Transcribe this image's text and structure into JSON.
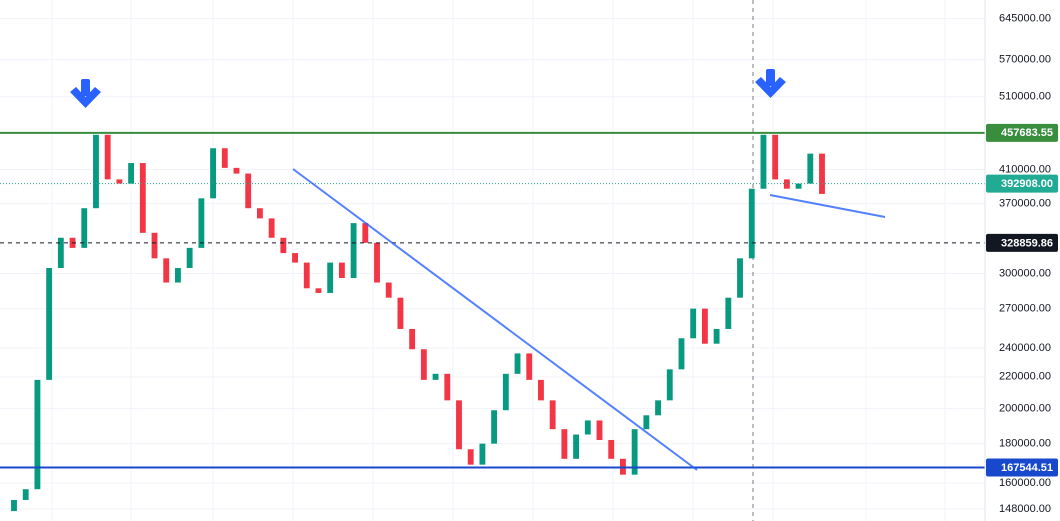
{
  "chart_data": {
    "type": "candlestick",
    "log_scale": true,
    "up_color": "#089981",
    "down_color": "#f23645",
    "open": [
      147000,
      152000,
      157000,
      218000,
      305000,
      334000,
      324000,
      365000,
      455000,
      398000,
      393000,
      418000,
      339000,
      314000,
      292000,
      305000,
      324000,
      376000,
      437000,
      412000,
      405000,
      365000,
      354000,
      334000,
      319000,
      310000,
      287000,
      283000,
      310000,
      296000,
      349000,
      329000,
      292000,
      279000,
      254000,
      239000,
      218000,
      222000,
      205000,
      177000,
      169000,
      180000,
      199000,
      222000,
      236000,
      218000,
      205000,
      188000,
      172000,
      185000,
      193000,
      182000,
      172000,
      164000,
      188000,
      196000,
      205000,
      225000,
      247000,
      270000,
      243000,
      254000,
      279000,
      314000,
      387000,
      455000,
      398000,
      387000,
      393000,
      430000
    ],
    "close": [
      152000,
      157000,
      218000,
      305000,
      334000,
      324000,
      365000,
      455000,
      398000,
      393000,
      418000,
      339000,
      314000,
      292000,
      305000,
      324000,
      376000,
      437000,
      412000,
      405000,
      365000,
      354000,
      334000,
      319000,
      310000,
      287000,
      283000,
      310000,
      296000,
      349000,
      329000,
      292000,
      279000,
      254000,
      239000,
      218000,
      222000,
      205000,
      177000,
      169000,
      180000,
      199000,
      222000,
      236000,
      218000,
      205000,
      188000,
      172000,
      185000,
      193000,
      182000,
      172000,
      164000,
      188000,
      196000,
      205000,
      225000,
      247000,
      270000,
      243000,
      254000,
      279000,
      314000,
      387000,
      455000,
      398000,
      387000,
      393000,
      430000,
      381000
    ],
    "ylim": [
      142700,
      682000
    ],
    "yticks": [
      {
        "value": 645000,
        "label": "645000.00"
      },
      {
        "value": 570000,
        "label": "570000.00"
      },
      {
        "value": 510000,
        "label": "510000.00"
      },
      {
        "value": 410000,
        "label": "410000.00"
      },
      {
        "value": 370000,
        "label": "370000.00"
      },
      {
        "value": 300000,
        "label": "300000.00"
      },
      {
        "value": 270000,
        "label": "270000.00"
      },
      {
        "value": 240000,
        "label": "240000.00"
      },
      {
        "value": 220000,
        "label": "220000.00"
      },
      {
        "value": 200000,
        "label": "200000.00"
      },
      {
        "value": 180000,
        "label": "180000.00"
      },
      {
        "value": 160000,
        "label": "160000.00"
      },
      {
        "value": 148000,
        "label": "148000.00"
      }
    ],
    "levels": [
      {
        "value": 457683.55,
        "label": "457683.55",
        "color": "#388e3c",
        "style": "solid"
      },
      {
        "value": 392908,
        "label": "392908.00",
        "color": "#22ab94",
        "style": "dotted"
      },
      {
        "value": 328859.86,
        "label": "328859.86",
        "color": "#131722",
        "style": "dashed"
      },
      {
        "value": 167544.51,
        "label": "167544.51",
        "color": "#1848cc",
        "style": "solid"
      }
    ]
  }
}
